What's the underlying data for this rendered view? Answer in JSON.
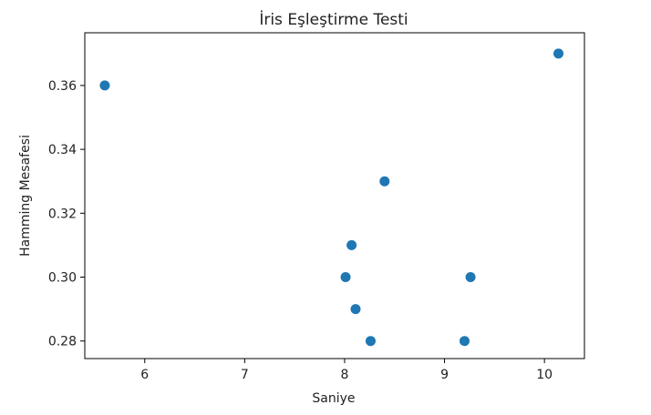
{
  "chart_data": {
    "type": "scatter",
    "title": "İris Eşleştirme Testi",
    "xlabel": "Saniye",
    "ylabel": "Hamming Mesafesi",
    "xlim": [
      5.4,
      10.4
    ],
    "ylim": [
      0.2745,
      0.3765
    ],
    "xticks": [
      6,
      7,
      8,
      9,
      10
    ],
    "xtick_labels": [
      "6",
      "7",
      "8",
      "9",
      "10"
    ],
    "yticks": [
      0.28,
      0.3,
      0.32,
      0.34,
      0.36
    ],
    "ytick_labels": [
      "0.28",
      "0.30",
      "0.32",
      "0.34",
      "0.36"
    ],
    "grid": false,
    "point_color": "#1f77b4",
    "points": [
      {
        "x": 5.6,
        "y": 0.36
      },
      {
        "x": 10.14,
        "y": 0.37
      },
      {
        "x": 8.4,
        "y": 0.33
      },
      {
        "x": 8.07,
        "y": 0.31
      },
      {
        "x": 8.01,
        "y": 0.3
      },
      {
        "x": 9.26,
        "y": 0.3
      },
      {
        "x": 8.11,
        "y": 0.29
      },
      {
        "x": 8.26,
        "y": 0.28
      },
      {
        "x": 9.2,
        "y": 0.28
      }
    ]
  }
}
